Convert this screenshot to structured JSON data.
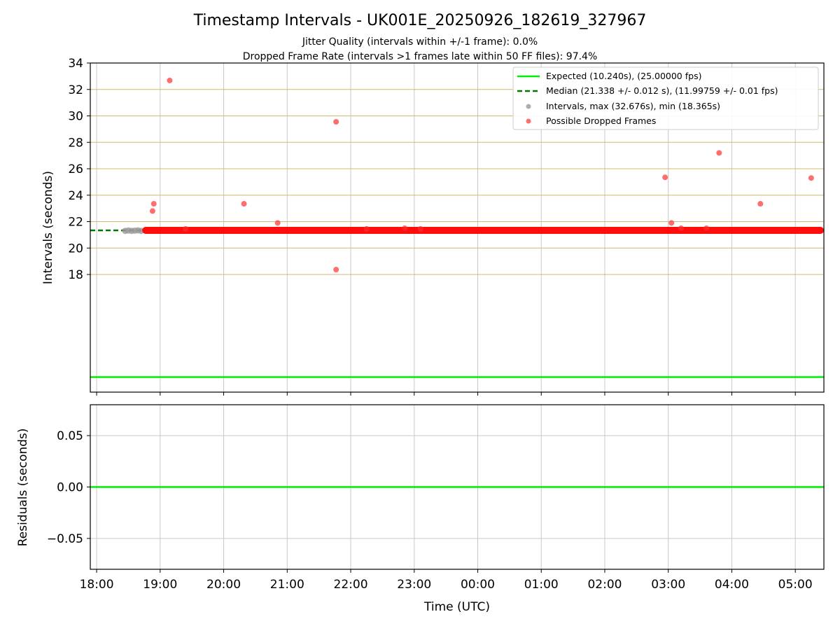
{
  "chart_data": {
    "title": "Timestamp Intervals - UK001E_20250926_182619_327967",
    "subtitle_lines": [
      "Jitter Quality (intervals within +/-1 frame): 0.0%",
      "Dropped Frame Rate (intervals >1 frames late within 50 FF files): 97.4%"
    ],
    "xlabel": "Time (UTC)",
    "x_ticks": [
      "18:00",
      "19:00",
      "20:00",
      "21:00",
      "22:00",
      "23:00",
      "00:00",
      "01:00",
      "02:00",
      "03:00",
      "04:00",
      "05:00"
    ],
    "x_range_hours": [
      17.9,
      29.45
    ],
    "top": {
      "type": "scatter",
      "ylabel": "Intervals (seconds)",
      "ylim": [
        9.1,
        34
      ],
      "y_ticks": [
        18,
        20,
        22,
        24,
        26,
        28,
        30,
        32,
        34
      ],
      "grid": "on",
      "legend_position": "top-right",
      "expected_value": 10.24,
      "median_value": 21.338,
      "median_end_hours": 18.75,
      "colors": {
        "expected": "#00ee00",
        "median": "#007700",
        "intervals": "#999999",
        "dropped": "#ff3030",
        "dropped_band": "#ff0000",
        "h_grid": "#d4b86a",
        "v_grid": "#c8c8c8"
      },
      "legend": [
        {
          "kind": "line",
          "label": "Expected (10.240s), (25.00000 fps)"
        },
        {
          "kind": "dashed",
          "label": "Median (21.338 +/- 0.012 s), (11.99759 +/- 0.01 fps)"
        },
        {
          "kind": "dot-gray",
          "label": "Intervals, max (32.676s), min (18.365s)"
        },
        {
          "kind": "dot-red",
          "label": "Possible Dropped Frames"
        }
      ],
      "baseline_band": {
        "x_start_hours": 18.75,
        "x_end_hours": 29.45,
        "y": 21.338
      },
      "gray_points": [
        {
          "x": 18.45,
          "y": 21.3
        },
        {
          "x": 18.5,
          "y": 21.33
        },
        {
          "x": 18.55,
          "y": 21.3
        },
        {
          "x": 18.6,
          "y": 21.32
        },
        {
          "x": 18.65,
          "y": 21.34
        },
        {
          "x": 18.7,
          "y": 21.3
        }
      ],
      "dropped_outliers": [
        {
          "x": 18.88,
          "y": 22.8
        },
        {
          "x": 18.9,
          "y": 23.35
        },
        {
          "x": 19.15,
          "y": 32.68
        },
        {
          "x": 19.4,
          "y": 21.45
        },
        {
          "x": 20.32,
          "y": 23.35
        },
        {
          "x": 20.85,
          "y": 21.9
        },
        {
          "x": 21.77,
          "y": 29.55
        },
        {
          "x": 21.77,
          "y": 18.37
        },
        {
          "x": 22.25,
          "y": 21.45
        },
        {
          "x": 22.85,
          "y": 21.5
        },
        {
          "x": 23.1,
          "y": 21.45
        },
        {
          "x": 26.95,
          "y": 25.35
        },
        {
          "x": 27.05,
          "y": 21.9
        },
        {
          "x": 27.2,
          "y": 21.5
        },
        {
          "x": 27.6,
          "y": 21.5
        },
        {
          "x": 27.8,
          "y": 27.2
        },
        {
          "x": 28.45,
          "y": 23.35
        },
        {
          "x": 29.25,
          "y": 25.3
        }
      ]
    },
    "bottom": {
      "type": "line",
      "ylabel": "Residuals (seconds)",
      "ylim": [
        -0.08,
        0.08
      ],
      "y_ticks": [
        "0.05",
        "0.00",
        "−0.05"
      ],
      "y_tick_values": [
        0.05,
        0.0,
        -0.05
      ],
      "residual_value": 0.0,
      "grid": "on"
    }
  }
}
